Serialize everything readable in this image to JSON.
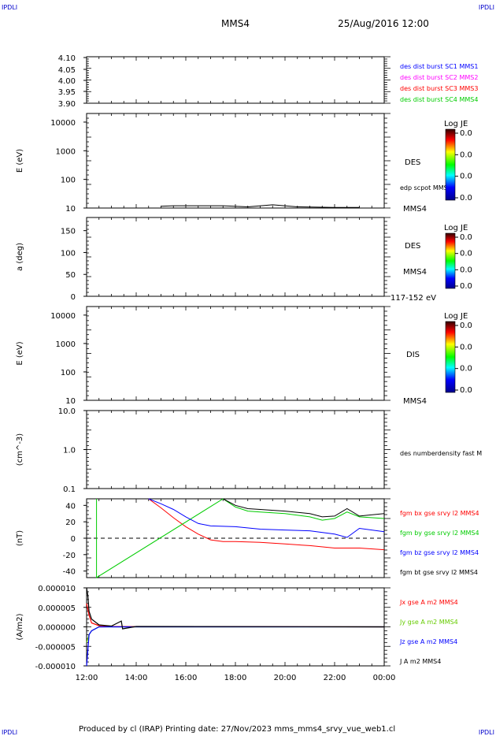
{
  "corner_tl": "IPDLI",
  "corner_tr": "IPDLI",
  "corner_bl": "IPDLI",
  "corner_br": "IPDLI",
  "header": {
    "spacecraft": "MMS4",
    "datetime": "25/Aug/2016 12:00"
  },
  "footer": "Produced by cl (IRAP)   Printing date: 27/Nov/2023   mms_mms4_srvy_vue_web1.cl",
  "x_ticks": [
    "12:00",
    "14:00",
    "16:00",
    "18:00",
    "20:00",
    "22:00",
    "00:00"
  ],
  "colorbar_title": "Log JE",
  "colorbar_ticks": [
    "0.0",
    "0.0",
    "0.0",
    "0.0"
  ],
  "panels": {
    "p1": {
      "ticks": [
        "4.10",
        "4.05",
        "4.00",
        "3.95",
        "3.90"
      ],
      "legend": [
        "des dist burst SC1 MMS1",
        "des dist burst SC2 MMS2",
        "des dist burst SC3 MMS3",
        "des dist burst SC4 MMS4"
      ],
      "legend_colors": [
        "#0000ff",
        "#ff00ff",
        "#ff0000",
        "#00cc00"
      ]
    },
    "p2": {
      "ylabel": "E (eV)",
      "ticks": [
        "10000",
        "1000",
        "100",
        "10"
      ],
      "species": "DES",
      "overlay": "edp scpot MMS4",
      "sc": "MMS4"
    },
    "p3": {
      "ylabel": "a (deg)",
      "ticks": [
        "150",
        "100",
        "50",
        "0"
      ],
      "species": "DES",
      "sc": "MMS4",
      "range": "117-152 eV"
    },
    "p4": {
      "ylabel": "E (eV)",
      "ticks": [
        "10000",
        "1000",
        "100",
        "10"
      ],
      "species": "DIS",
      "sc": "MMS4"
    },
    "p5": {
      "ylabel": "(cm^-3)",
      "ticks": [
        "10.0",
        "1.0",
        "0.1"
      ],
      "legend": "des numberdensity fast M"
    },
    "p6": {
      "ylabel": "(nT)",
      "ticks": [
        "40",
        "20",
        "0",
        "-20",
        "-40"
      ],
      "legend": [
        "fgm bx gse srvy l2 MMS4",
        "fgm by gse srvy l2 MMS4",
        "fgm bz gse srvy l2 MMS4",
        "fgm bt gse srvy l2 MMS4"
      ],
      "legend_colors": [
        "#ff0000",
        "#00cc00",
        "#0000ff",
        "#000000"
      ]
    },
    "p7": {
      "ylabel": "(A/m2)",
      "ticks": [
        "0.000010",
        "0.000005",
        "0.000000",
        "-0.000005",
        "-0.000010"
      ],
      "legend": [
        "Jx gse A m2 MMS4",
        "Jy gse A m2 MMS4",
        "Jz gse A m2 MMS4",
        "J A m2 MMS4"
      ],
      "legend_colors": [
        "#ff0000",
        "#66cc00",
        "#0000ff",
        "#000000"
      ]
    }
  },
  "chart_data": [
    {
      "type": "line",
      "ylabel": "",
      "ylim": [
        3.9,
        4.1
      ],
      "series": []
    },
    {
      "type": "heatmap",
      "ylabel": "E (eV)",
      "yscale": "log",
      "ylim": [
        10,
        20000
      ],
      "x_range": [
        "12:00",
        "00:00"
      ],
      "overlay_series": {
        "name": "edp scpot MMS4",
        "x": [
          15.0,
          15.5,
          16.5,
          17.5,
          18.5,
          19.5,
          20.5,
          22.0,
          23.0
        ],
        "y": [
          11.5,
          12,
          12,
          12,
          11,
          13,
          11,
          10.5,
          10.5
        ]
      }
    },
    {
      "type": "heatmap",
      "ylabel": "a (deg)",
      "ylim": [
        0,
        180
      ],
      "x_range": [
        "12:00",
        "00:00"
      ]
    },
    {
      "type": "heatmap",
      "ylabel": "E (eV)",
      "yscale": "log",
      "ylim": [
        10,
        20000
      ],
      "x_range": [
        "12:00",
        "00:00"
      ]
    },
    {
      "type": "line",
      "ylabel": "(cm^-3)",
      "yscale": "log",
      "ylim": [
        0.1,
        10
      ],
      "series": []
    },
    {
      "type": "line",
      "ylabel": "(nT)",
      "ylim": [
        -48,
        48
      ],
      "x_range": [
        "12:00",
        "00:00"
      ],
      "series": [
        {
          "name": "fgm bx gse srvy l2 MMS4",
          "color": "#ff0000",
          "x": [
            14.5,
            15.0,
            15.5,
            16.0,
            16.5,
            17.0,
            17.5,
            18.0,
            19.0,
            20.0,
            21.0,
            22.0,
            23.0,
            24.0
          ],
          "y": [
            48,
            37,
            25,
            14,
            5,
            -2,
            -4,
            -4,
            -5,
            -7,
            -9,
            -12,
            -12,
            -14
          ]
        },
        {
          "name": "fgm by gse srvy l2 MMS4",
          "color": "#00cc00",
          "x": [
            12.4,
            12.4,
            17.5,
            18.0,
            18.5,
            19.0,
            20.0,
            21.0,
            21.5,
            22.0,
            22.5,
            23.0,
            24.0
          ],
          "y": [
            48,
            -48,
            48,
            38,
            33,
            32,
            30,
            26,
            22,
            24,
            32,
            26,
            24
          ]
        },
        {
          "name": "fgm bz gse srvy l2 MMS4",
          "color": "#0000ff",
          "x": [
            14.5,
            15.0,
            15.5,
            16.0,
            16.5,
            17.0,
            18.0,
            19.0,
            20.0,
            21.0,
            22.0,
            22.5,
            23.0,
            24.0
          ],
          "y": [
            48,
            42,
            35,
            26,
            18,
            15,
            14,
            11,
            10,
            9,
            5,
            1,
            12,
            8
          ]
        },
        {
          "name": "fgm bt gse srvy l2 MMS4",
          "color": "#000000",
          "x": [
            17.5,
            18.0,
            18.5,
            19.0,
            20.0,
            21.0,
            21.5,
            22.0,
            22.5,
            23.0,
            24.0
          ],
          "y": [
            48,
            40,
            36,
            35,
            33,
            30,
            26,
            27,
            36,
            27,
            30
          ]
        }
      ]
    },
    {
      "type": "line",
      "ylabel": "(A/m2)",
      "ylim": [
        -1e-05,
        1e-05
      ],
      "x_range": [
        "12:00",
        "00:00"
      ],
      "series": [
        {
          "name": "Jx gse A m2 MMS4",
          "color": "#ff0000",
          "x": [
            12.0,
            12.1,
            12.2,
            12.5,
            13.0,
            24.0
          ],
          "y": [
            6e-06,
            3e-06,
            1e-06,
            3e-07,
            1e-07,
            0
          ]
        },
        {
          "name": "Jy gse A m2 MMS4",
          "color": "#66cc00",
          "x": [
            12.0,
            12.1,
            12.2,
            12.5,
            13.0,
            24.0
          ],
          "y": [
            -4e-06,
            -2e-06,
            -1e-06,
            0,
            0,
            0
          ]
        },
        {
          "name": "Jz gse A m2 MMS4",
          "color": "#0000ff",
          "x": [
            12.0,
            12.05,
            12.1,
            12.2,
            12.5,
            24.0
          ],
          "y": [
            -1e-05,
            -6e-06,
            -2e-06,
            -1e-06,
            0,
            0
          ]
        },
        {
          "name": "J A m2 MMS4",
          "color": "#000000",
          "x": [
            12.0,
            12.05,
            12.1,
            12.2,
            12.5,
            13.0,
            13.4,
            13.45,
            14.0,
            24.0
          ],
          "y": [
            1e-05,
            8e-06,
            4e-06,
            2e-06,
            5e-07,
            2e-07,
            1.5e-06,
            -5e-07,
            1e-07,
            0
          ]
        }
      ]
    }
  ]
}
